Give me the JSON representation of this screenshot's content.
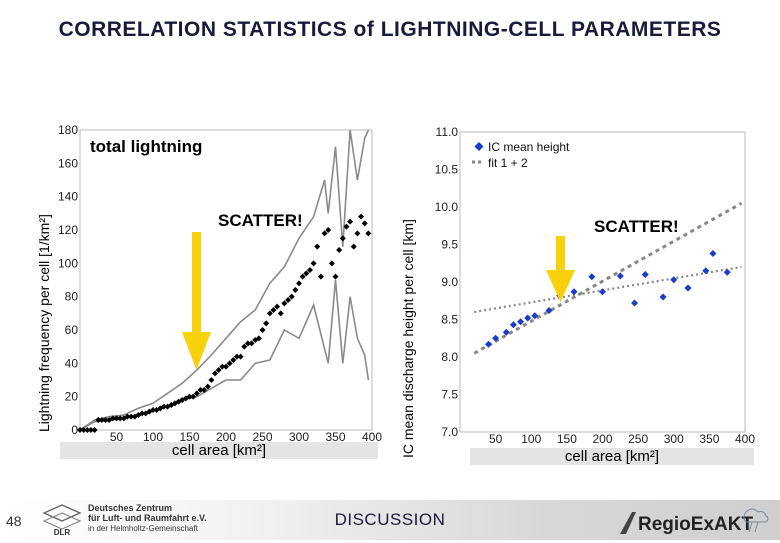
{
  "page": {
    "title": "CORRELATION STATISTICS of LIGHTNING-CELL PARAMETERS",
    "page_number": "48",
    "footer_center": "DISCUSSION",
    "dlr_lines": [
      "Deutsches Zentrum",
      "für Luft- und Raumfahrt e.V.",
      "in der Helmholtz-Gemeinschaft"
    ],
    "dlr_short": "DLR",
    "regio_text": "RegioExAKT"
  },
  "colors": {
    "accent_arrow": "#f7d10a",
    "ic_points": "#1a3cc8",
    "fit_line": "#888888",
    "mean_points": "#000000",
    "spread_lines": "#8a8a8a",
    "title": "#1a1a3a"
  },
  "chart_data": [
    {
      "type": "scatter",
      "title": "",
      "annotation": "total lightning",
      "callout": "SCATTER!",
      "xlabel": "cell area [km²]",
      "ylabel": "Lightning frequency per cell [1/km²]",
      "xlim": [
        0,
        400
      ],
      "ylim": [
        0,
        180
      ],
      "xticks": [
        0,
        50,
        100,
        150,
        200,
        250,
        300,
        350,
        400
      ],
      "yticks": [
        0,
        20,
        40,
        60,
        80,
        100,
        120,
        140,
        160,
        180
      ],
      "grid": false,
      "series": [
        {
          "x": [
            0,
            5,
            10,
            15,
            20,
            25,
            30,
            35,
            40,
            45,
            50,
            55,
            60,
            65,
            70,
            75,
            80,
            85,
            90,
            95,
            100,
            105,
            110,
            115,
            120,
            125,
            130,
            135,
            140,
            145,
            150,
            155,
            160,
            165,
            170,
            175,
            180,
            185,
            190,
            195,
            200,
            205,
            210,
            215,
            220,
            225,
            230,
            235,
            240,
            245,
            250,
            255,
            260,
            265,
            270,
            275,
            280,
            285,
            290,
            295,
            300,
            305,
            310,
            315,
            320,
            325,
            330,
            335,
            340,
            345,
            350,
            355,
            360,
            365,
            370,
            375,
            380,
            385,
            390,
            395
          ],
          "y": [
            0,
            0,
            0,
            0,
            0,
            6,
            6,
            6,
            6,
            7,
            7,
            7,
            7,
            8,
            8,
            8,
            9,
            10,
            10,
            11,
            12,
            12,
            13,
            14,
            14,
            15,
            16,
            17,
            18,
            19,
            20,
            20,
            22,
            24,
            24,
            26,
            30,
            34,
            36,
            38,
            38,
            40,
            42,
            44,
            44,
            50,
            52,
            52,
            54,
            55,
            60,
            64,
            70,
            72,
            74,
            70,
            76,
            78,
            80,
            84,
            88,
            92,
            94,
            96,
            100,
            110,
            92,
            118,
            120,
            100,
            92,
            108,
            115,
            122,
            125,
            110,
            118,
            128,
            124,
            118
          ]
        },
        {
          "x": [
            0,
            20,
            40,
            60,
            80,
            100,
            120,
            140,
            160,
            180,
            200,
            220,
            240,
            260,
            280,
            300,
            320,
            335,
            340,
            350,
            360,
            370,
            380,
            390,
            395
          ],
          "y": [
            0,
            6,
            8,
            9,
            13,
            16,
            22,
            28,
            36,
            45,
            55,
            65,
            72,
            88,
            98,
            115,
            128,
            150,
            130,
            170,
            110,
            180,
            150,
            175,
            180
          ]
        },
        {
          "x": [
            0,
            20,
            40,
            60,
            80,
            100,
            120,
            140,
            160,
            180,
            200,
            220,
            240,
            260,
            280,
            300,
            320,
            340,
            350,
            360,
            370,
            380,
            390,
            395
          ],
          "y": [
            0,
            5,
            6,
            7,
            9,
            12,
            14,
            18,
            20,
            25,
            30,
            30,
            40,
            42,
            60,
            55,
            75,
            40,
            90,
            40,
            80,
            55,
            45,
            30
          ]
        }
      ]
    },
    {
      "type": "scatter",
      "title": "",
      "callout": "SCATTER!",
      "xlabel": "cell area [km²]",
      "ylabel": "IC mean discharge height per cell [km]",
      "xlim": [
        0,
        400
      ],
      "ylim": [
        7.0,
        11.0
      ],
      "xticks": [
        0,
        50,
        100,
        150,
        200,
        250,
        300,
        350,
        400
      ],
      "yticks": [
        7.0,
        7.5,
        8.0,
        8.5,
        9.0,
        9.5,
        10.0,
        10.5,
        11.0
      ],
      "legend": [
        "IC mean height",
        "fit 1 + 2"
      ],
      "legend_position": "top-left",
      "grid": false,
      "series": [
        {
          "name": "IC mean height",
          "x": [
            40,
            50,
            65,
            75,
            85,
            95,
            105,
            125,
            140,
            160,
            185,
            200,
            225,
            245,
            260,
            285,
            300,
            320,
            345,
            355,
            375
          ],
          "y": [
            8.17,
            8.25,
            8.33,
            8.43,
            8.47,
            8.52,
            8.55,
            8.62,
            8.82,
            8.87,
            9.07,
            8.87,
            9.08,
            8.72,
            9.1,
            8.8,
            9.03,
            8.92,
            9.15,
            9.38,
            9.13
          ]
        },
        {
          "name": "fit 1 + 2",
          "lines": [
            {
              "x": [
                20,
                395
              ],
              "y": [
                8.05,
                10.05
              ]
            },
            {
              "x": [
                20,
                395
              ],
              "y": [
                8.6,
                9.2
              ]
            }
          ]
        }
      ]
    }
  ]
}
